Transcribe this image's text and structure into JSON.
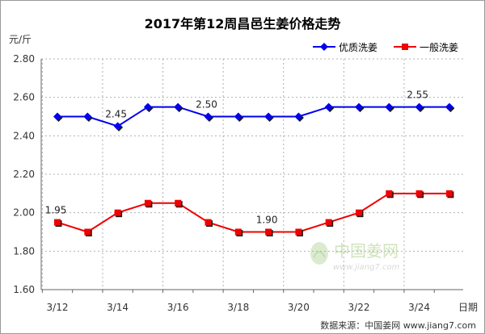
{
  "chart_data": {
    "type": "line",
    "title": "2017年第12周昌邑生姜价格走势",
    "unit_label": "元/斤",
    "xlabel": "日期",
    "ylabel": "",
    "ylim": [
      1.6,
      2.8
    ],
    "yticks": [
      "1.60",
      "1.80",
      "2.00",
      "2.20",
      "2.40",
      "2.60",
      "2.80"
    ],
    "grid": true,
    "legend_position": "top-right",
    "categories": [
      "3/12",
      "3/13",
      "3/14",
      "3/15",
      "3/16",
      "3/17",
      "3/18",
      "3/19",
      "3/20",
      "3/21",
      "3/22",
      "3/23",
      "3/24",
      "3/25"
    ],
    "xtick_labels": [
      "3/12",
      "3/14",
      "3/16",
      "3/18",
      "3/20",
      "3/22",
      "3/24"
    ],
    "series": [
      {
        "name": "优质洗姜",
        "color": "#0000ee",
        "marker": "diamond",
        "values": [
          2.5,
          2.5,
          2.45,
          2.55,
          2.55,
          2.5,
          2.5,
          2.5,
          2.5,
          2.55,
          2.55,
          2.55,
          2.55,
          2.55
        ]
      },
      {
        "name": "一般洗姜",
        "color": "#ee0000",
        "marker": "square",
        "values": [
          1.95,
          1.9,
          2.0,
          2.05,
          2.05,
          1.95,
          1.9,
          1.9,
          1.9,
          1.95,
          2.0,
          2.1,
          2.1,
          2.1
        ]
      }
    ],
    "annotations": [
      {
        "text": "2.45",
        "series": 0,
        "index": 2
      },
      {
        "text": "2.50",
        "series": 0,
        "index": 5
      },
      {
        "text": "2.55",
        "series": 0,
        "index": 12
      },
      {
        "text": "1.95",
        "series": 1,
        "index": 0
      },
      {
        "text": "1.90",
        "series": 1,
        "index": 7
      }
    ]
  },
  "watermark": {
    "main": "中国姜网",
    "url": "www.jiang7.com"
  },
  "footer": {
    "source": "数据来源：中国姜网  www.jiang7.com"
  }
}
